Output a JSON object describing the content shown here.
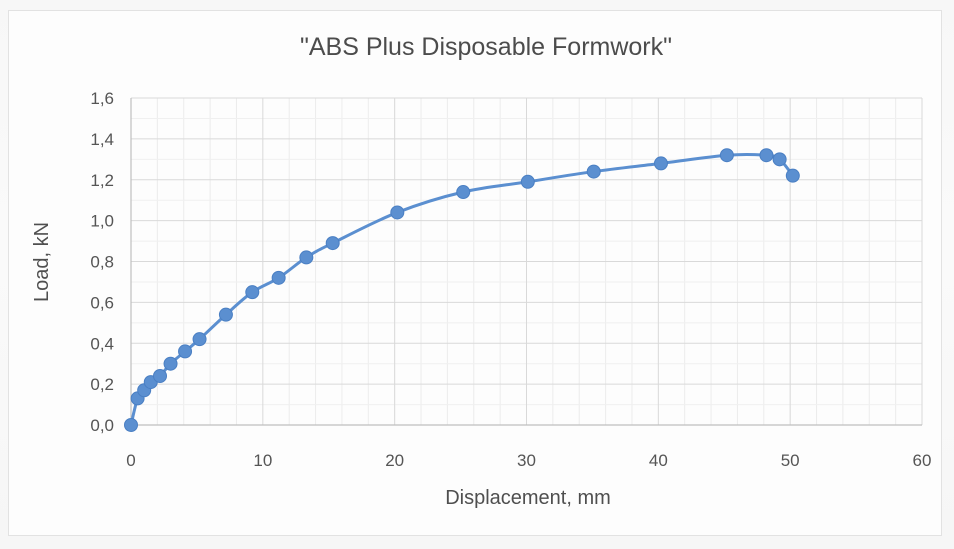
{
  "colors": {
    "series": "#5b8fd0",
    "series_dark": "#4a7fc3",
    "grid": "#d9d9d9",
    "axis": "#bfbfbf",
    "text": "#4f4f4f"
  },
  "chart_data": {
    "type": "scatter",
    "title": "\"ABS Plus Disposable Formwork\"",
    "xlabel": "Displacement, mm",
    "ylabel": "Load, kN",
    "xlim": [
      0,
      60
    ],
    "ylim": [
      0,
      1.6
    ],
    "xticks": [
      0,
      10,
      20,
      30,
      40,
      50,
      60
    ],
    "yticks": [
      0,
      0.2,
      0.4,
      0.6,
      0.8,
      1.0,
      1.2,
      1.4,
      1.6
    ],
    "xtick_labels": [
      "0",
      "10",
      "20",
      "30",
      "40",
      "50",
      "60"
    ],
    "ytick_labels": [
      "0,0",
      "0,2",
      "0,4",
      "0,6",
      "0,8",
      "1,0",
      "1,2",
      "1,4",
      "1,6"
    ],
    "grid": true,
    "legend": "none",
    "series": [
      {
        "x": [
          0,
          0.5,
          1.0,
          1.5,
          2.2,
          3.0,
          4.1,
          5.2,
          7.2,
          9.2,
          11.2,
          13.3,
          15.3,
          20.2,
          25.2,
          30.1,
          35.1,
          40.2,
          45.2,
          48.2,
          49.2,
          50.2
        ],
        "y": [
          0.0,
          0.13,
          0.17,
          0.21,
          0.24,
          0.3,
          0.36,
          0.42,
          0.54,
          0.65,
          0.72,
          0.82,
          0.89,
          1.04,
          1.14,
          1.19,
          1.24,
          1.28,
          1.32,
          1.32,
          1.3,
          1.22
        ]
      }
    ]
  }
}
